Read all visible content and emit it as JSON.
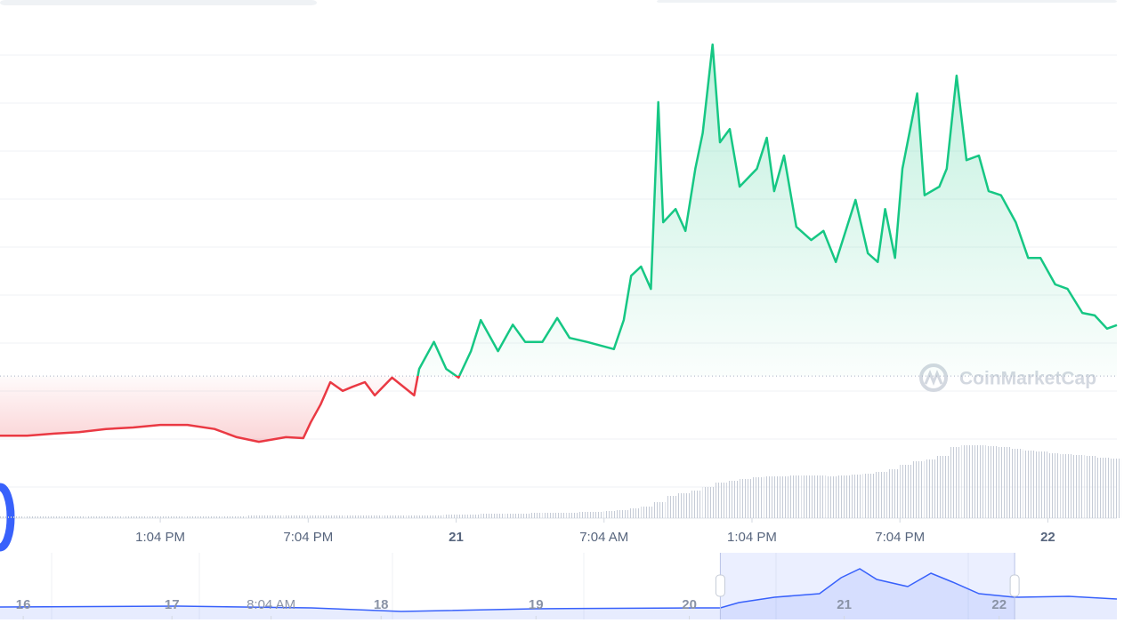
{
  "watermark": "CoinMarketCap",
  "chart_data": [
    {
      "type": "line",
      "x": [
        0,
        1.1,
        2.2,
        3.2,
        4.3,
        5.4,
        6.5,
        7.6,
        8.7,
        9.6,
        10.5,
        11.6,
        12.3,
        12.6,
        13.0,
        13.4,
        13.9,
        14.3,
        14.8,
        15.2,
        15.9,
        16.8,
        17.0,
        17.6,
        18.1,
        18.6,
        19.1,
        19.5,
        20.2,
        20.8,
        21.3,
        22.0,
        22.6,
        23.1,
        23.8,
        24.9,
        25.3,
        25.6,
        26.0,
        26.4,
        26.7,
        26.9,
        27.4,
        27.8,
        28.2,
        28.5,
        28.9,
        29.2,
        29.6,
        30.0,
        30.7,
        31.1,
        31.4,
        31.8,
        32.3,
        32.9,
        33.4,
        33.9,
        34.7,
        35.2,
        35.6,
        35.9,
        36.3,
        36.6,
        37.2,
        37.5,
        38.1,
        38.4,
        38.8,
        39.2,
        39.7,
        40.1,
        40.6,
        41.2,
        41.7,
        42.2,
        42.8,
        43.3,
        43.9,
        44.4,
        44.9,
        45.3
      ],
      "values": [
        16.2,
        16.2,
        16.6,
        16.9,
        17.5,
        17.8,
        18.3,
        18.3,
        17.5,
        15.9,
        15.0,
        15.9,
        15.7,
        18.8,
        22.3,
        26.7,
        25.0,
        25.8,
        26.7,
        24.1,
        27.6,
        24.1,
        29.3,
        34.6,
        29.3,
        27.6,
        32.8,
        38.9,
        32.8,
        38.0,
        34.6,
        34.6,
        39.3,
        35.4,
        34.6,
        33.2,
        38.9,
        47.6,
        49.4,
        45.0,
        81.7,
        58.1,
        60.7,
        56.4,
        68.6,
        75.6,
        93.0,
        73.8,
        76.4,
        65.1,
        68.6,
        74.7,
        64.2,
        71.2,
        57.2,
        54.6,
        56.4,
        50.3,
        62.5,
        52.0,
        50.3,
        60.7,
        51.1,
        68.6,
        83.4,
        63.4,
        65.1,
        68.6,
        86.9,
        70.3,
        71.2,
        64.2,
        63.4,
        58.1,
        51.1,
        51.1,
        45.9,
        45.0,
        40.3,
        39.8,
        37.2,
        37.9
      ],
      "baseline": 27.9,
      "color_up": "#16c784",
      "color_down": "#ea3943",
      "xlim": [
        0,
        45.3
      ],
      "ylim": [
        0,
        100
      ],
      "xticks": [
        {
          "value": 6.5,
          "label": "1:04 PM"
        },
        {
          "value": 12.5,
          "label": "7:04 PM"
        },
        {
          "value": 18.5,
          "label": "21"
        },
        {
          "value": 24.5,
          "label": "7:04 AM"
        },
        {
          "value": 30.5,
          "label": "1:04 PM"
        },
        {
          "value": 36.5,
          "label": "7:04 PM"
        },
        {
          "value": 42.5,
          "label": "22"
        }
      ]
    },
    {
      "type": "bar",
      "x": [
        0,
        0.5,
        1,
        1.5,
        2,
        2.5,
        3,
        3.5,
        4,
        4.5,
        5,
        5.5,
        6,
        6.5,
        7,
        7.5,
        8,
        8.5,
        9,
        9.5,
        10,
        10.5,
        11,
        11.5,
        12,
        12.5,
        13,
        13.5,
        14,
        14.5,
        15,
        15.5,
        16,
        16.5,
        17,
        17.5,
        18,
        18.5,
        19,
        19.5,
        20,
        20.5,
        21,
        21.5,
        22,
        22.5,
        23,
        23.5,
        24,
        24.5,
        25,
        25.5,
        26,
        26.5,
        27,
        27.5,
        28,
        28.5,
        29,
        29.5,
        30,
        30.5,
        31,
        31.5,
        32,
        32.5,
        33,
        33.5,
        34,
        34.5,
        35,
        35.5,
        36,
        36.5,
        37,
        37.5,
        38,
        38.5,
        39,
        39.5,
        40,
        40.5,
        41,
        41.5,
        42,
        42.5,
        43,
        43.5,
        44,
        44.5,
        45
      ],
      "values": [
        2,
        2,
        2,
        2,
        2,
        2,
        2,
        2,
        2,
        2,
        2,
        2,
        2,
        2,
        2,
        2,
        2,
        2,
        2,
        2,
        3,
        3,
        3,
        3,
        3,
        3,
        3,
        3,
        3,
        3,
        3,
        3,
        3,
        3,
        3,
        3,
        4,
        4,
        4,
        5,
        5,
        5,
        5,
        6,
        6,
        6,
        6,
        7,
        7,
        8,
        9,
        11,
        13,
        18,
        25,
        28,
        31,
        35,
        40,
        42,
        44,
        46,
        47,
        47,
        48,
        48,
        48,
        47,
        48,
        49,
        50,
        52,
        55,
        60,
        64,
        66,
        70,
        80,
        82,
        82,
        81,
        80,
        78,
        76,
        75,
        73,
        72,
        71,
        70,
        68,
        67
      ],
      "color": "#c5cbd6",
      "xlim": [
        0,
        45.3
      ],
      "ylim": [
        0,
        100
      ]
    },
    {
      "type": "line",
      "x": [
        15.55,
        16.7,
        17.56,
        18.14,
        19.0,
        20.03,
        20.2,
        20.32,
        20.55,
        20.84,
        20.98,
        21.1,
        21.21,
        21.41,
        21.56,
        21.7,
        21.87,
        22.1,
        22.45,
        22.76
      ],
      "values": [
        18.7,
        20,
        17.3,
        12,
        16,
        17.3,
        17.3,
        25.3,
        33.3,
        38.7,
        62.7,
        76,
        60,
        49.3,
        69.3,
        56,
        38.7,
        33.3,
        34.7,
        30.7
      ],
      "color": "#3861fb",
      "selection": [
        20.2,
        22.1
      ],
      "xlim": [
        15.55,
        22.76
      ],
      "ylim": [
        0,
        100
      ],
      "xticks": [
        {
          "value": 15.7,
          "label": "16"
        },
        {
          "value": 16.66,
          "label": "17"
        },
        {
          "value": 17.3,
          "label": "8:04 AM"
        },
        {
          "value": 18.01,
          "label": "18"
        },
        {
          "value": 19.01,
          "label": "19"
        },
        {
          "value": 20.0,
          "label": "20"
        },
        {
          "value": 21.0,
          "label": "21"
        },
        {
          "value": 22.0,
          "label": "22"
        }
      ]
    }
  ]
}
